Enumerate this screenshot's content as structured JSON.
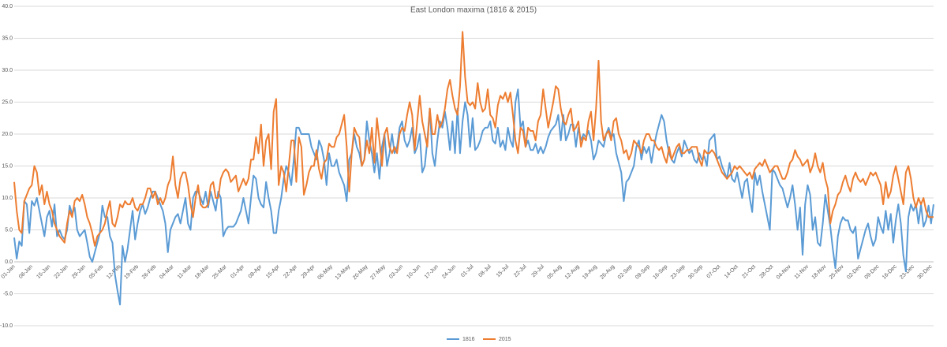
{
  "chart_data": {
    "type": "line",
    "title": "East London maxima (1816 & 2015)",
    "categories": [
      "01-Jan",
      null,
      null,
      null,
      null,
      null,
      null,
      "08-Jan",
      null,
      null,
      null,
      null,
      null,
      null,
      "15-Jan",
      null,
      null,
      null,
      null,
      null,
      null,
      "22-Jan",
      null,
      null,
      null,
      null,
      null,
      null,
      "29-Jan",
      null,
      null,
      null,
      null,
      null,
      null,
      "05-Feb",
      null,
      null,
      null,
      null,
      null,
      null,
      "12-Feb",
      null,
      null,
      null,
      null,
      null,
      null,
      "19-Feb",
      null,
      null,
      null,
      null,
      null,
      null,
      "26-Feb",
      null,
      null,
      null,
      null,
      null,
      null,
      "04-Mar",
      null,
      null,
      null,
      null,
      null,
      null,
      "11-Mar",
      null,
      null,
      null,
      null,
      null,
      null,
      "18-Mar",
      null,
      null,
      null,
      null,
      null,
      null,
      "25-Mar",
      null,
      null,
      null,
      null,
      null,
      null,
      "01-Apr",
      null,
      null,
      null,
      null,
      null,
      null,
      "08-Apr",
      null,
      null,
      null,
      null,
      null,
      null,
      "15-Apr",
      null,
      null,
      null,
      null,
      null,
      null,
      "22-Apr",
      null,
      null,
      null,
      null,
      null,
      null,
      "29-Apr",
      null,
      null,
      null,
      null,
      null,
      null,
      "06-May",
      null,
      null,
      null,
      null,
      null,
      null,
      "13-May",
      null,
      null,
      null,
      null,
      null,
      null,
      "20-May",
      null,
      null,
      null,
      null,
      null,
      null,
      "27-May",
      null,
      null,
      null,
      null,
      null,
      null,
      "03-Jun",
      null,
      null,
      null,
      null,
      null,
      null,
      "10-Jun",
      null,
      null,
      null,
      null,
      null,
      null,
      "17-Jun",
      null,
      null,
      null,
      null,
      null,
      null,
      "24-Jun",
      null,
      null,
      null,
      null,
      null,
      null,
      "01-Jul",
      null,
      null,
      null,
      null,
      null,
      null,
      "08-Jul",
      null,
      null,
      null,
      null,
      null,
      null,
      "15-Jul",
      null,
      null,
      null,
      null,
      null,
      null,
      "22-Jul",
      null,
      null,
      null,
      null,
      null,
      null,
      "29-Jul",
      null,
      null,
      null,
      null,
      null,
      null,
      "05-Aug",
      null,
      null,
      null,
      null,
      null,
      null,
      "12-Aug",
      null,
      null,
      null,
      null,
      null,
      null,
      "19-Aug",
      null,
      null,
      null,
      null,
      null,
      null,
      "26-Aug",
      null,
      null,
      null,
      null,
      null,
      null,
      "02-Sep",
      null,
      null,
      null,
      null,
      null,
      null,
      "09-Sep",
      null,
      null,
      null,
      null,
      null,
      null,
      "16-Sep",
      null,
      null,
      null,
      null,
      null,
      null,
      "23-Sep",
      null,
      null,
      null,
      null,
      null,
      null,
      "30-Sep",
      null,
      null,
      null,
      null,
      null,
      null,
      "07-Oct",
      null,
      null,
      null,
      null,
      null,
      null,
      "14-Oct",
      null,
      null,
      null,
      null,
      null,
      null,
      "21-Oct",
      null,
      null,
      null,
      null,
      null,
      null,
      "28-Oct",
      null,
      null,
      null,
      null,
      null,
      null,
      "04-Nov",
      null,
      null,
      null,
      null,
      null,
      null,
      "11-Nov",
      null,
      null,
      null,
      null,
      null,
      null,
      "18-Nov",
      null,
      null,
      null,
      null,
      null,
      null,
      "25-Nov",
      null,
      null,
      null,
      null,
      null,
      null,
      "02-Dec",
      null,
      null,
      null,
      null,
      null,
      null,
      "09-Dec",
      null,
      null,
      null,
      null,
      null,
      null,
      "16-Dec",
      null,
      null,
      null,
      null,
      null,
      null,
      "23-Dec",
      null,
      null,
      null,
      null,
      null,
      null,
      "30-Dec",
      null
    ],
    "series": [
      {
        "name": "1816",
        "color": "#5b9bd5",
        "values": [
          3.8,
          0.5,
          3.2,
          2.5,
          9.5,
          9.0,
          4.5,
          9.5,
          8.8,
          10,
          8,
          6,
          4,
          7,
          8,
          5.5,
          9,
          4,
          5,
          4,
          3.5,
          5,
          8.8,
          7.5,
          8.5,
          5,
          4,
          4.5,
          5,
          3,
          0.8,
          0,
          1.5,
          3,
          4.5,
          8.8,
          7,
          7,
          4,
          3,
          -2,
          -4.5,
          -6.7,
          2.5,
          0,
          2,
          5,
          8,
          3.5,
          6,
          8,
          9,
          7.5,
          8.5,
          10,
          11,
          11,
          10,
          9,
          8,
          6,
          1.5,
          5,
          6,
          7,
          7.5,
          6,
          8,
          10,
          6,
          5,
          10,
          11,
          11,
          10,
          9,
          11,
          8.5,
          11,
          9.5,
          8,
          11,
          10,
          4,
          5,
          5.5,
          5.5,
          5.5,
          6,
          7,
          8,
          10,
          8,
          6,
          10,
          13.5,
          13,
          10,
          9,
          8.5,
          12.5,
          10,
          8,
          4.5,
          4.5,
          8,
          10,
          13,
          15,
          14,
          12,
          16,
          21,
          21,
          20,
          20,
          20,
          20,
          18,
          17,
          16,
          19,
          18,
          16,
          12,
          17,
          15,
          15,
          16,
          14,
          13,
          12,
          9.5,
          16,
          17,
          20,
          18,
          17,
          15,
          16,
          22,
          19,
          17,
          14,
          17,
          13,
          18,
          20,
          15,
          17,
          20,
          17,
          18,
          21,
          22,
          19,
          18,
          19,
          21,
          17,
          18,
          20,
          14,
          15,
          19,
          24,
          17,
          15,
          19,
          22,
          21,
          23.5,
          21,
          17.5,
          22,
          17,
          24,
          17,
          22,
          25,
          23,
          18,
          22.5,
          17.5,
          18,
          19,
          20.5,
          21,
          21,
          22,
          19,
          18.5,
          21,
          18,
          19,
          17.5,
          21,
          19,
          18,
          25,
          27,
          21,
          22,
          18,
          19,
          17.5,
          17.5,
          18.5,
          17,
          18,
          17,
          18,
          19.5,
          20.5,
          21,
          21.5,
          23,
          19,
          23,
          19,
          20,
          21.5,
          21.5,
          18,
          21,
          19,
          20,
          19.5,
          20.5,
          19,
          16,
          17,
          19,
          18.5,
          18,
          20,
          21,
          19.5,
          20,
          17,
          15.5,
          14,
          9.5,
          12.5,
          13,
          14,
          15,
          18,
          19,
          16,
          18,
          17,
          18,
          15.5,
          18,
          20,
          21.5,
          23,
          22,
          19,
          17,
          16,
          15.5,
          17,
          18,
          16.5,
          19,
          18,
          17,
          17.5,
          16,
          15.5,
          17,
          16,
          16.5,
          15,
          19,
          19.5,
          20,
          16,
          16.5,
          15,
          14,
          13,
          15.5,
          13,
          12.5,
          14,
          12,
          10,
          12.5,
          13,
          10,
          7.8,
          14,
          12,
          13.5,
          11,
          9,
          7,
          5,
          14.5,
          14,
          13,
          12,
          11.5,
          10,
          8.5,
          10,
          12,
          9,
          5,
          8.5,
          1.1,
          9,
          12,
          10.5,
          5,
          7,
          3,
          2.5,
          6,
          10.5,
          8,
          5.5,
          2,
          -1,
          4,
          6,
          7,
          6.5,
          6.5,
          5,
          4.5,
          5.5,
          0.5,
          2,
          3.5,
          5,
          6,
          4,
          2.5,
          3.5,
          7,
          5.5,
          4.5,
          8,
          5,
          7.5,
          3,
          6.5,
          9,
          6,
          1,
          -1.5,
          7,
          9,
          8,
          9,
          6,
          9,
          5.5,
          6.5,
          8.8,
          6,
          9
        ]
      },
      {
        "name": "2015",
        "color": "#ed7d31",
        "values": [
          12.5,
          8,
          5,
          4.5,
          9.5,
          10.5,
          11.5,
          12,
          15,
          14,
          10.5,
          12,
          9,
          11,
          9,
          8,
          6,
          5,
          4,
          3.5,
          3,
          6,
          8,
          7,
          9.5,
          10,
          9.5,
          10.5,
          9,
          7,
          6,
          4.5,
          2.5,
          4,
          4.5,
          5,
          6,
          8,
          9.5,
          6,
          5.5,
          7,
          9,
          8.5,
          9.5,
          9,
          9,
          10,
          8.5,
          8,
          9,
          9,
          10,
          11.5,
          11.5,
          10,
          11,
          9,
          10,
          9,
          10,
          12,
          13,
          16.5,
          12,
          10,
          13,
          14,
          14,
          12,
          9,
          7,
          10,
          12,
          9,
          8.5,
          8.5,
          9,
          12,
          12.5,
          10,
          10,
          13,
          14,
          14.5,
          14,
          12.5,
          13,
          13.5,
          11,
          12,
          13,
          12,
          13,
          16,
          16,
          19.5,
          17,
          21.5,
          15,
          19,
          20,
          14.5,
          23.5,
          25.5,
          12,
          15,
          14,
          11,
          15,
          19,
          19,
          12.5,
          19.5,
          18,
          10.5,
          12,
          14,
          15,
          15,
          17.5,
          14.5,
          13,
          15.5,
          16,
          18.5,
          18,
          18,
          19.5,
          20,
          21.5,
          23,
          18,
          11,
          17,
          21,
          20,
          19.5,
          15,
          16,
          19,
          17,
          21,
          15.5,
          22.5,
          19,
          15,
          20,
          21,
          18,
          17,
          18,
          17,
          20,
          21,
          20.5,
          23,
          25,
          23,
          17.5,
          22,
          26,
          22,
          20,
          18,
          24,
          20,
          20,
          23,
          21,
          22,
          24,
          27,
          28.5,
          26,
          24,
          23,
          27.5,
          36,
          29,
          25,
          24.5,
          25,
          24,
          28,
          25,
          23.5,
          24,
          27,
          23,
          22.5,
          21,
          24.5,
          26,
          25.5,
          26.5,
          25,
          26.5,
          23,
          19,
          17,
          21,
          20.5,
          18,
          21,
          20.5,
          20.5,
          19,
          22,
          23,
          27,
          24,
          21,
          23,
          25,
          27.5,
          27,
          24,
          22,
          21.5,
          23,
          24,
          20.5,
          21,
          22,
          18,
          19.5,
          19,
          22,
          23.5,
          19,
          24,
          31.5,
          22,
          19,
          20,
          20.5,
          19,
          22,
          22.5,
          20,
          19,
          17,
          17.5,
          16,
          17,
          19,
          18.5,
          18,
          17,
          19,
          20,
          20,
          19,
          19,
          18,
          17.5,
          18,
          16.5,
          15.5,
          18,
          16,
          17,
          18,
          18.5,
          17,
          17,
          17.5,
          17.5,
          18,
          18,
          18,
          16,
          15,
          17.5,
          17,
          17,
          17.5,
          17,
          16,
          15,
          14,
          13.5,
          13,
          13.5,
          14,
          15,
          14.5,
          15,
          14.5,
          14,
          13.5,
          14,
          13,
          14.5,
          15,
          15.5,
          15,
          16,
          15,
          14,
          14.5,
          15,
          15,
          14,
          13,
          13,
          14,
          15.5,
          16,
          17.5,
          16.5,
          16,
          15,
          15.5,
          16,
          14,
          15,
          17,
          15,
          14,
          15.5,
          13,
          11.5,
          6,
          8,
          9,
          10.5,
          11,
          12.5,
          13.5,
          12,
          11,
          13,
          14,
          13,
          12.5,
          13,
          12,
          13,
          14,
          13.5,
          14,
          13,
          12,
          9,
          12.5,
          10,
          11,
          13.5,
          15,
          13,
          11,
          9,
          14,
          15,
          13,
          10,
          8.5,
          10,
          9,
          10,
          8,
          7,
          7,
          7
        ]
      }
    ],
    "ylim": [
      -10,
      40
    ],
    "yticks": [
      {
        "value": -10,
        "label": "-10.0"
      },
      {
        "value": -5,
        "label": "-5.0"
      },
      {
        "value": 0,
        "label": "0.0"
      },
      {
        "value": 5,
        "label": "5.0"
      },
      {
        "value": 10,
        "label": "10.0"
      },
      {
        "value": 15,
        "label": "15.0"
      },
      {
        "value": 20,
        "label": "20.0"
      },
      {
        "value": 25,
        "label": "25.0"
      },
      {
        "value": 30,
        "label": "30.0"
      },
      {
        "value": 35,
        "label": "35.0"
      },
      {
        "value": 40,
        "label": "40.0"
      }
    ],
    "grid": true,
    "legend": "bottom"
  }
}
